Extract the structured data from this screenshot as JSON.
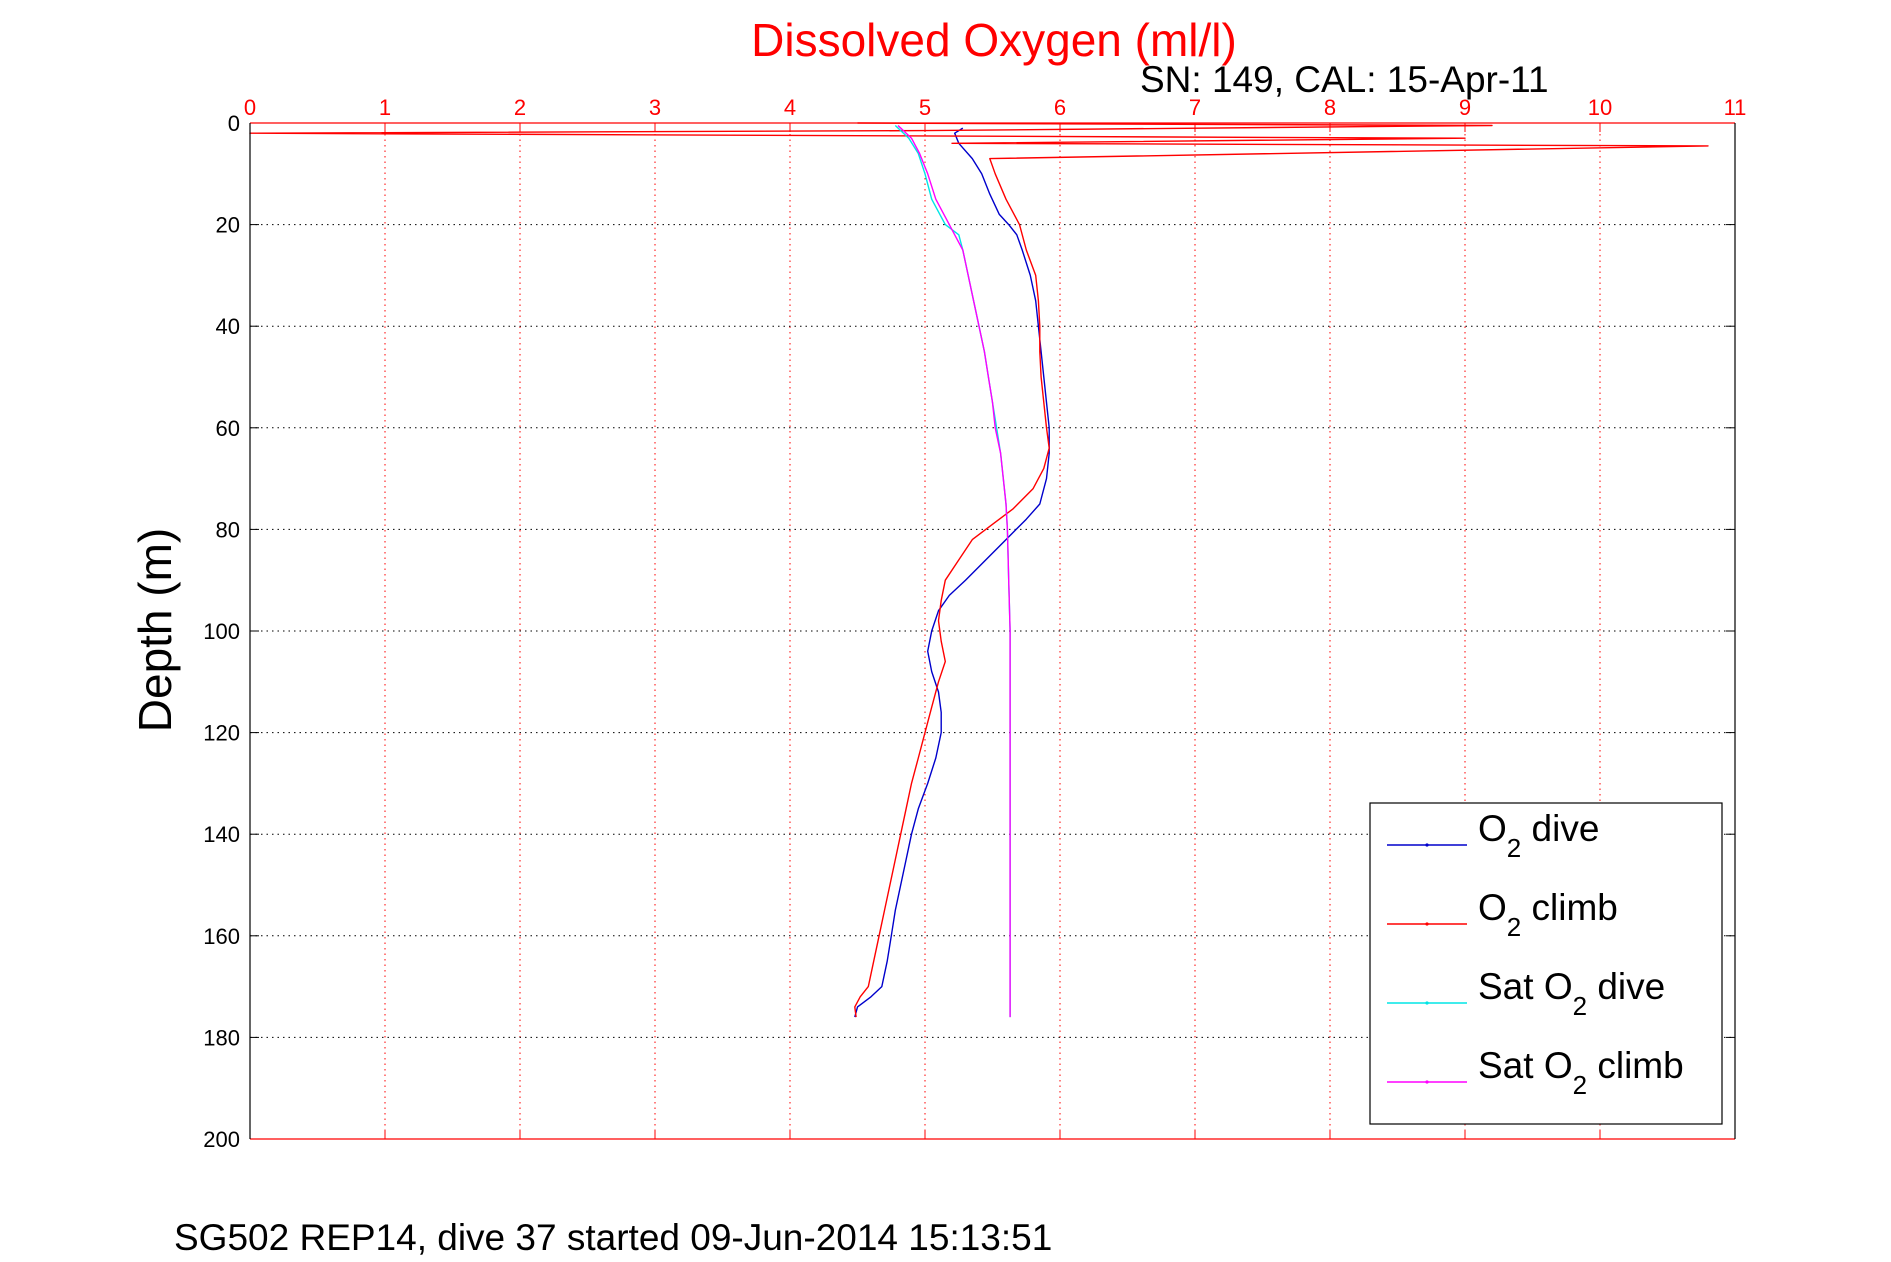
{
  "chart_data": {
    "type": "line",
    "title": "Dissolved Oxygen (ml/l)",
    "subtitle": "SN: 149, CAL: 15-Apr-11",
    "xlabel": "",
    "ylabel": "Depth (m)",
    "footer": "SG502 REP14, dive 37 started 09-Jun-2014 15:13:51",
    "xlim": [
      0,
      11
    ],
    "ylim": [
      0,
      200
    ],
    "y_reversed": true,
    "x_axis_position": "top",
    "x_ticks": [
      "0",
      "1",
      "2",
      "3",
      "4",
      "5",
      "6",
      "7",
      "8",
      "9",
      "10",
      "11"
    ],
    "y_ticks": [
      "0",
      "20",
      "40",
      "60",
      "80",
      "100",
      "120",
      "140",
      "160",
      "180",
      "200"
    ],
    "grid": true,
    "legend_position": "bottom-right",
    "legend": [
      {
        "prefix": "O",
        "sub": "2",
        "suffix": " dive"
      },
      {
        "prefix": "O",
        "sub": "2",
        "suffix": " climb"
      },
      {
        "prefix": "Sat O",
        "sub": "2",
        "suffix": " dive"
      },
      {
        "prefix": "Sat O",
        "sub": "2",
        "suffix": " climb"
      }
    ],
    "colors": {
      "o2_dive": "#0000cc",
      "o2_climb": "#ff0000",
      "sat_dive": "#00e5e5",
      "sat_climb": "#ff00ff",
      "x_axis": "#ff0000",
      "grid_x": "#ff0000",
      "grid_y": "#000000"
    },
    "series": [
      {
        "name": "O2 dive",
        "color_key": "o2_dive",
        "points": [
          [
            5.28,
            1
          ],
          [
            5.22,
            2
          ],
          [
            5.25,
            4
          ],
          [
            5.35,
            7
          ],
          [
            5.42,
            10
          ],
          [
            5.48,
            14
          ],
          [
            5.55,
            18
          ],
          [
            5.62,
            20
          ],
          [
            5.68,
            22
          ],
          [
            5.72,
            25
          ],
          [
            5.78,
            30
          ],
          [
            5.82,
            35
          ],
          [
            5.84,
            40
          ],
          [
            5.86,
            45
          ],
          [
            5.88,
            50
          ],
          [
            5.9,
            55
          ],
          [
            5.92,
            60
          ],
          [
            5.92,
            65
          ],
          [
            5.9,
            70
          ],
          [
            5.85,
            75
          ],
          [
            5.75,
            78
          ],
          [
            5.6,
            82
          ],
          [
            5.45,
            86
          ],
          [
            5.3,
            90
          ],
          [
            5.18,
            93
          ],
          [
            5.1,
            96
          ],
          [
            5.05,
            100
          ],
          [
            5.02,
            104
          ],
          [
            5.05,
            108
          ],
          [
            5.1,
            112
          ],
          [
            5.12,
            116
          ],
          [
            5.12,
            120
          ],
          [
            5.08,
            125
          ],
          [
            5.02,
            130
          ],
          [
            4.95,
            135
          ],
          [
            4.9,
            140
          ],
          [
            4.86,
            145
          ],
          [
            4.82,
            150
          ],
          [
            4.78,
            155
          ],
          [
            4.75,
            160
          ],
          [
            4.72,
            165
          ],
          [
            4.68,
            170
          ],
          [
            4.6,
            172
          ],
          [
            4.5,
            174
          ],
          [
            4.48,
            176
          ]
        ]
      },
      {
        "name": "O2 climb",
        "color_key": "o2_climb",
        "points": [
          [
            4.49,
            176
          ],
          [
            4.48,
            174
          ],
          [
            4.52,
            172
          ],
          [
            4.58,
            170
          ],
          [
            4.62,
            165
          ],
          [
            4.66,
            160
          ],
          [
            4.7,
            155
          ],
          [
            4.74,
            150
          ],
          [
            4.78,
            145
          ],
          [
            4.82,
            140
          ],
          [
            4.86,
            135
          ],
          [
            4.9,
            130
          ],
          [
            4.95,
            125
          ],
          [
            5.0,
            120
          ],
          [
            5.05,
            115
          ],
          [
            5.1,
            110
          ],
          [
            5.15,
            106
          ],
          [
            5.12,
            102
          ],
          [
            5.1,
            98
          ],
          [
            5.12,
            94
          ],
          [
            5.15,
            90
          ],
          [
            5.25,
            86
          ],
          [
            5.35,
            82
          ],
          [
            5.5,
            79
          ],
          [
            5.65,
            76
          ],
          [
            5.8,
            72
          ],
          [
            5.88,
            68
          ],
          [
            5.92,
            64
          ],
          [
            5.9,
            60
          ],
          [
            5.88,
            55
          ],
          [
            5.86,
            50
          ],
          [
            5.85,
            45
          ],
          [
            5.85,
            40
          ],
          [
            5.84,
            35
          ],
          [
            5.82,
            30
          ],
          [
            5.75,
            25
          ],
          [
            5.7,
            20
          ],
          [
            5.6,
            15
          ],
          [
            5.52,
            10
          ],
          [
            5.48,
            7
          ],
          [
            10.8,
            4.5
          ],
          [
            5.2,
            4
          ],
          [
            9.0,
            3
          ],
          [
            0,
            2
          ],
          [
            5.0,
            1.5
          ],
          [
            9.2,
            0.5
          ],
          [
            4.5,
            0
          ]
        ]
      },
      {
        "name": "Sat O2 dive",
        "color_key": "sat_dive",
        "points": [
          [
            4.78,
            0.5
          ],
          [
            4.88,
            3
          ],
          [
            4.95,
            6
          ],
          [
            5.0,
            10
          ],
          [
            5.05,
            15
          ],
          [
            5.15,
            20
          ],
          [
            5.25,
            22
          ],
          [
            5.28,
            25
          ],
          [
            5.32,
            30
          ],
          [
            5.36,
            35
          ],
          [
            5.4,
            40
          ],
          [
            5.44,
            45
          ],
          [
            5.47,
            50
          ],
          [
            5.5,
            55
          ],
          [
            5.53,
            60
          ],
          [
            5.56,
            65
          ],
          [
            5.58,
            70
          ],
          [
            5.6,
            75
          ],
          [
            5.61,
            80
          ],
          [
            5.62,
            90
          ],
          [
            5.63,
            100
          ],
          [
            5.63,
            120
          ],
          [
            5.63,
            140
          ],
          [
            5.63,
            160
          ],
          [
            5.63,
            176
          ]
        ]
      },
      {
        "name": "Sat O2 climb",
        "color_key": "sat_climb",
        "points": [
          [
            5.63,
            176
          ],
          [
            5.63,
            160
          ],
          [
            5.63,
            140
          ],
          [
            5.63,
            120
          ],
          [
            5.63,
            100
          ],
          [
            5.62,
            90
          ],
          [
            5.61,
            80
          ],
          [
            5.6,
            75
          ],
          [
            5.58,
            70
          ],
          [
            5.56,
            65
          ],
          [
            5.52,
            60
          ],
          [
            5.5,
            55
          ],
          [
            5.47,
            50
          ],
          [
            5.44,
            45
          ],
          [
            5.4,
            40
          ],
          [
            5.36,
            35
          ],
          [
            5.32,
            30
          ],
          [
            5.28,
            25
          ],
          [
            5.22,
            22
          ],
          [
            5.18,
            20
          ],
          [
            5.08,
            15
          ],
          [
            5.02,
            10
          ],
          [
            4.96,
            6
          ],
          [
            4.9,
            3
          ],
          [
            4.8,
            0.5
          ]
        ]
      }
    ]
  }
}
